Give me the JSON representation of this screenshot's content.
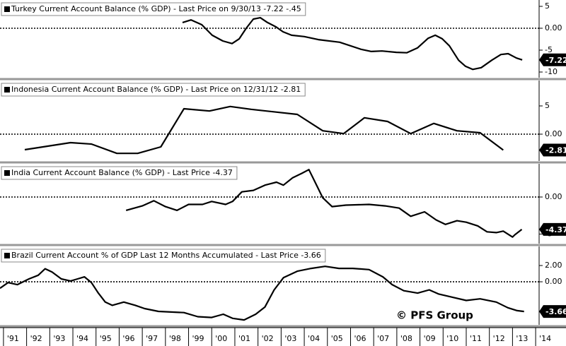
{
  "watermark": "© PFS Group",
  "chart_data": [
    {
      "type": "line",
      "title": "Turkey Current Account Balance (% GDP)  - Last Price on 9/30/13  -7.22  -.45",
      "color": "#000000",
      "last_price": -7.22,
      "zero_line": true,
      "xlim": [
        1990.85,
        2014.15
      ],
      "ylim": [
        -11.29,
        6.45
      ],
      "yticks": [
        5,
        {
          "value": 0,
          "label": "0.00"
        },
        -5,
        -10
      ],
      "x": [
        1998.74,
        1999.11,
        1999.57,
        2000.02,
        2000.48,
        2000.88,
        2001.19,
        2001.49,
        2001.8,
        2002.1,
        2002.41,
        2002.78,
        2003.08,
        2003.45,
        2004.0,
        2004.61,
        2005.53,
        2006.45,
        2006.9,
        2007.36,
        2007.98,
        2008.43,
        2008.89,
        2009.35,
        2009.66,
        2009.96,
        2010.27,
        2010.67,
        2010.97,
        2011.28,
        2011.65,
        2012.1,
        2012.5,
        2012.81,
        2013.17,
        2013.42
      ],
      "values": [
        1.3,
        1.9,
        0.8,
        -1.6,
        -2.9,
        -3.5,
        -2.4,
        0,
        2.1,
        2.4,
        1.3,
        0.3,
        -0.8,
        -1.6,
        -1.9,
        -2.6,
        -3.2,
        -4.8,
        -5.3,
        -5.2,
        -5.5,
        -5.6,
        -4.5,
        -2.3,
        -1.6,
        -2.4,
        -4.0,
        -7.3,
        -8.7,
        -9.4,
        -9.0,
        -7.3,
        -6.0,
        -5.8,
        -6.8,
        -7.22
      ]
    },
    {
      "type": "line",
      "title": "Indonesia Current Account Balance (% GDP)  - Last Price on 12/31/12  -2.81",
      "color": "#000000",
      "last_price": -2.81,
      "zero_line": true,
      "xlim": [
        1990.85,
        2014.15
      ],
      "ylim": [
        -4.75,
        9.5
      ],
      "yticks": [
        5,
        {
          "value": 0,
          "label": "0.00"
        }
      ],
      "x": [
        1991.92,
        1993.9,
        1994.8,
        1995.9,
        1996.8,
        1997.8,
        1998.8,
        1999.9,
        2000.8,
        2001.7,
        2003.7,
        2004.8,
        2005.7,
        2006.6,
        2007.6,
        2008.6,
        2009.6,
        2010.6,
        2011.6,
        2012.6
      ],
      "values": [
        -2.75,
        -1.5,
        -1.75,
        -3.4,
        -3.4,
        -2.25,
        4.5,
        4.1,
        4.9,
        4.4,
        3.5,
        0.6,
        0.1,
        2.9,
        2.25,
        0.1,
        1.9,
        0.6,
        0.25,
        -2.81
      ]
    },
    {
      "type": "line",
      "title": "India Current Account Balance (% GDP)  - Last Price  -4.37",
      "color": "#000000",
      "last_price": -4.37,
      "zero_line": true,
      "xlim": [
        1990.85,
        2014.15
      ],
      "ylim": [
        -6.29,
        4.48
      ],
      "yticks": [
        {
          "value": 0,
          "label": "0.00"
        },
        -5
      ],
      "x": [
        1996.3,
        1997.0,
        1997.5,
        1998.0,
        1998.5,
        1999.0,
        1999.6,
        2000.0,
        2000.6,
        2000.9,
        2001.3,
        2001.8,
        2002.3,
        2002.8,
        2003.1,
        2003.5,
        2003.9,
        2004.2,
        2004.5,
        2004.8,
        2005.2,
        2005.8,
        2006.8,
        2007.5,
        2008.1,
        2008.6,
        2009.2,
        2009.7,
        2010.1,
        2010.6,
        2011.0,
        2011.5,
        2011.9,
        2012.3,
        2012.6,
        2013.0,
        2013.1,
        2013.4
      ],
      "values": [
        -1.8,
        -1.2,
        -0.5,
        -1.3,
        -1.8,
        -1.0,
        -1.0,
        -0.6,
        -1.0,
        -0.6,
        0.7,
        0.9,
        1.6,
        2.0,
        1.6,
        2.6,
        3.2,
        3.7,
        1.8,
        -0.1,
        -1.3,
        -1.1,
        -1.0,
        -1.2,
        -1.5,
        -2.6,
        -2.0,
        -3.1,
        -3.7,
        -3.2,
        -3.4,
        -3.9,
        -4.7,
        -4.8,
        -4.6,
        -5.4,
        -5.1,
        -4.37
      ]
    },
    {
      "type": "line",
      "title": "Brazil Current Account % of GDP Last 12 Months Accumulated  - Last Price  -3.66",
      "color": "#000000",
      "last_price": -3.66,
      "zero_line": true,
      "xlim": [
        1990.85,
        2014.15
      ],
      "ylim": [
        -5.3,
        4.35
      ],
      "yticks": [
        {
          "value": 2,
          "label": "2.00"
        },
        {
          "value": 0,
          "label": "0.00"
        }
      ],
      "xticks": [
        {
          "value": 1991,
          "label": "'91"
        },
        {
          "value": 1992,
          "label": "'92"
        },
        {
          "value": 1993,
          "label": "'93"
        },
        {
          "value": 1994,
          "label": "'94"
        },
        {
          "value": 1995,
          "label": "'95"
        },
        {
          "value": 1996,
          "label": "'96"
        },
        {
          "value": 1997,
          "label": "'97"
        },
        {
          "value": 1998,
          "label": "'98"
        },
        {
          "value": 1999,
          "label": "'99"
        },
        {
          "value": 2000,
          "label": "'00"
        },
        {
          "value": 2001,
          "label": "'01"
        },
        {
          "value": 2002,
          "label": "'02"
        },
        {
          "value": 2003,
          "label": "'03"
        },
        {
          "value": 2004,
          "label": "'04"
        },
        {
          "value": 2005,
          "label": "'05"
        },
        {
          "value": 2006,
          "label": "'06"
        },
        {
          "value": 2007,
          "label": "'07"
        },
        {
          "value": 2008,
          "label": "'08"
        },
        {
          "value": 2009,
          "label": "'09"
        },
        {
          "value": 2010,
          "label": "'10"
        },
        {
          "value": 2011,
          "label": "'11"
        },
        {
          "value": 2012,
          "label": "'12"
        },
        {
          "value": 2013,
          "label": "'13"
        },
        {
          "value": 2014,
          "label": "'14"
        }
      ],
      "x": [
        1990.85,
        1991.2,
        1991.6,
        1992.1,
        1992.5,
        1992.8,
        1993.1,
        1993.5,
        1993.9,
        1994.2,
        1994.5,
        1994.8,
        1995.1,
        1995.4,
        1995.7,
        1996.2,
        1996.7,
        1997.1,
        1997.7,
        1998.8,
        1999.4,
        2000.0,
        2000.5,
        2000.9,
        2001.4,
        2001.9,
        2002.3,
        2002.7,
        2003.1,
        2003.7,
        2004.3,
        2004.9,
        2005.5,
        2006.1,
        2006.8,
        2007.4,
        2007.8,
        2008.3,
        2008.9,
        2009.4,
        2009.8,
        2010.4,
        2011.0,
        2011.6,
        2012.3,
        2012.8,
        2013.2,
        2013.5
      ],
      "values": [
        -0.8,
        -0.1,
        -0.35,
        0.35,
        0.8,
        1.6,
        1.2,
        0.35,
        0.1,
        0.35,
        0.6,
        -0.1,
        -1.4,
        -2.5,
        -2.9,
        -2.5,
        -2.9,
        -3.3,
        -3.65,
        -3.8,
        -4.3,
        -4.4,
        -4.0,
        -4.5,
        -4.7,
        -4.0,
        -3.1,
        -1.0,
        0.5,
        1.3,
        1.65,
        1.9,
        1.65,
        1.65,
        1.5,
        0.6,
        -0.35,
        -1.1,
        -1.4,
        -1.0,
        -1.5,
        -1.9,
        -2.3,
        -2.1,
        -2.5,
        -3.2,
        -3.55,
        -3.66
      ]
    }
  ]
}
